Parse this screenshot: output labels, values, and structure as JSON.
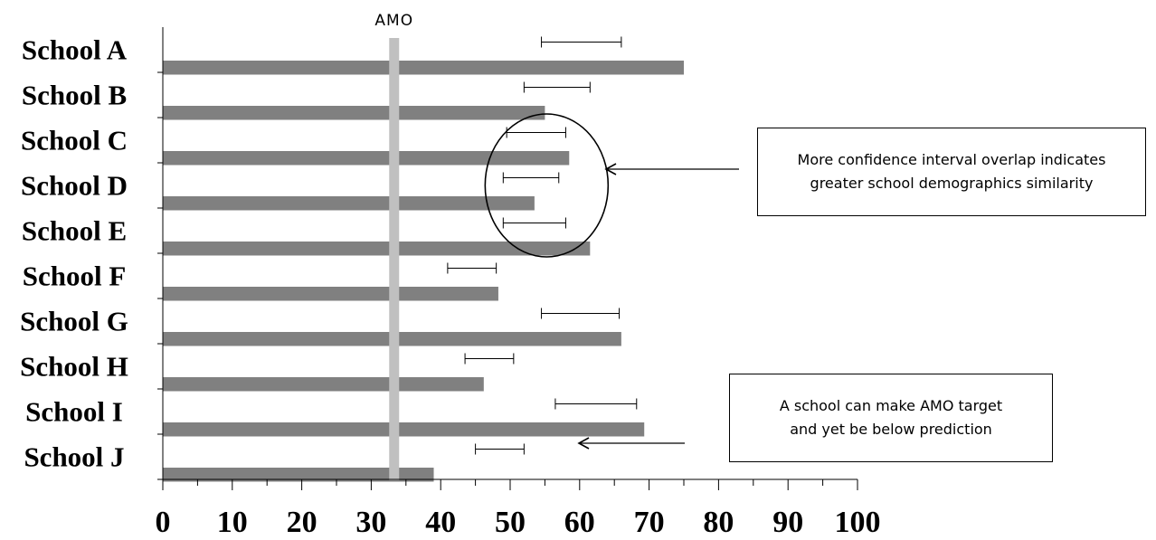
{
  "chart_data": {
    "type": "bar",
    "orientation": "horizontal",
    "categories": [
      "School A",
      "School B",
      "School C",
      "School D",
      "School E",
      "School F",
      "School G",
      "School H",
      "School I",
      "School J"
    ],
    "values": [
      75,
      55,
      58.5,
      53.5,
      61.5,
      48.3,
      66,
      46.2,
      69.3,
      39
    ],
    "error_bars": [
      [
        54.5,
        66
      ],
      [
        52,
        61.5
      ],
      [
        49.5,
        58
      ],
      [
        49,
        57
      ],
      [
        49,
        58
      ],
      [
        41,
        48
      ],
      [
        54.5,
        65.7
      ],
      [
        43.5,
        50.5
      ],
      [
        56.5,
        68.2
      ],
      [
        45,
        52
      ]
    ],
    "reference_line": {
      "label": "AMO",
      "value": 33.3
    },
    "xlim": [
      0,
      100
    ],
    "xticks": [
      0,
      10,
      20,
      30,
      40,
      50,
      60,
      70,
      80,
      90,
      100
    ],
    "annotations": {
      "overlap": {
        "lines": [
          "More confidence interval overlap indicates",
          "greater school demographics similarity"
        ],
        "circled_categories": [
          "School C",
          "School D",
          "School E"
        ]
      },
      "amo": {
        "lines": [
          "A school can make AMO target",
          "and yet be below prediction"
        ],
        "points_to": "School J"
      }
    },
    "colors": {
      "bar": "#808080",
      "amo_line": "#c0c0c0",
      "axis": "#000000"
    }
  }
}
